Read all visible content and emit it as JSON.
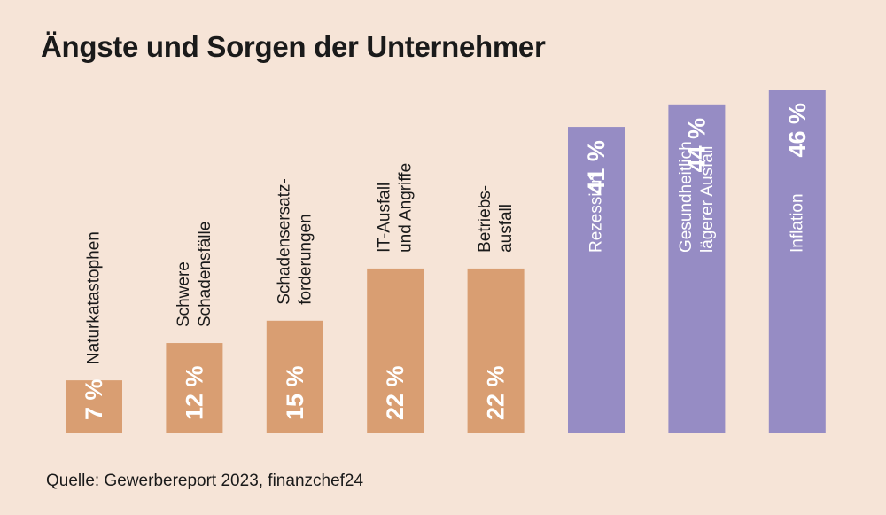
{
  "title": "Ängste und Sorgen der Unternehmer",
  "source": "Quelle: Gewerbereport 2023, finanzchef24",
  "colors": {
    "background": "#f6e4d7",
    "bar_orange": "#d99e72",
    "bar_purple": "#968cc4",
    "label_dark": "#1a1a1a",
    "label_light": "#ffffff"
  },
  "chart_data": {
    "type": "bar",
    "title": "Ängste und Sorgen der Unternehmer",
    "categories": [
      [
        "Naturkatastophen"
      ],
      [
        "Schwere",
        "Schadensfälle"
      ],
      [
        "Schadensersatz-",
        "forderungen"
      ],
      [
        "IT-Ausfall",
        "und Angriffe"
      ],
      [
        "Betriebs-",
        "ausfall"
      ],
      [
        "Rezession"
      ],
      [
        "Gesundheitlich",
        "lägerer Ausfall"
      ],
      [
        "Inflation"
      ]
    ],
    "values": [
      7,
      12,
      15,
      22,
      22,
      41,
      44,
      46
    ],
    "value_labels": [
      "7 %",
      "12 %",
      "15 %",
      "22 %",
      "22 %",
      "41 %",
      "44 %",
      "46 %"
    ],
    "bar_colors": [
      "#d99e72",
      "#d99e72",
      "#d99e72",
      "#d99e72",
      "#d99e72",
      "#968cc4",
      "#968cc4",
      "#968cc4"
    ],
    "label_position": [
      "above",
      "above",
      "above",
      "above",
      "above",
      "inside",
      "inside",
      "inside"
    ],
    "value_unit": "%",
    "ylim": [
      0,
      46
    ],
    "grid": false,
    "legend": "none"
  }
}
